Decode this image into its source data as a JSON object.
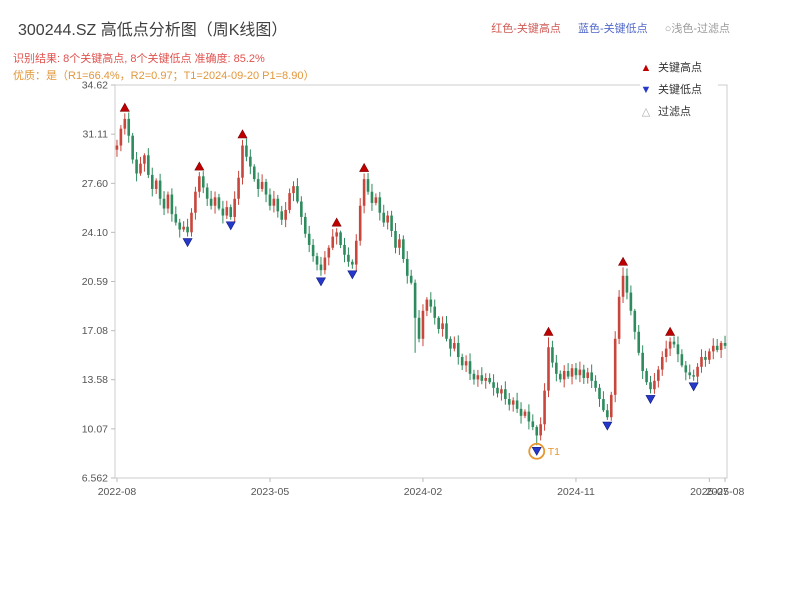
{
  "header": {
    "title": "300244.SZ 高低点分析图（周K线图）",
    "legend_top": [
      {
        "label": "红色-关键高点",
        "color": "#d05a56"
      },
      {
        "label": "蓝色-关键低点",
        "color": "#5068c8"
      },
      {
        "label": "○浅色-过滤点",
        "color": "#9a9a9a"
      }
    ],
    "subtitle1": "识别结果: 8个关键高点, 8个关键低点  准确度: 85.2%",
    "subtitle1_color": "#e0524e",
    "subtitle2": "优质：是（R1=66.4%，R2=0.97；T1=2024-09-20 P1=8.90）",
    "subtitle2_color": "#e2973b",
    "title_color": "#404040"
  },
  "legend_box": {
    "items": [
      {
        "label": "关键高点",
        "glyph": "▲",
        "color": "#c00000"
      },
      {
        "label": "关键低点",
        "glyph": "▼",
        "color": "#2638c8"
      },
      {
        "label": "过滤点",
        "glyph": "△",
        "color": "#aaaaaa"
      }
    ]
  },
  "chart_data": {
    "type": "candlestick",
    "symbol": "300244.SZ",
    "period": "weekly",
    "title": "300244.SZ 高低点分析图（周K线图）",
    "ylim": [
      6.562,
      34.62
    ],
    "y_ticks": [
      {
        "label": "34.62",
        "value": 34.62
      },
      {
        "label": "31.11",
        "value": 31.11
      },
      {
        "label": "27.60",
        "value": 27.6
      },
      {
        "label": "24.10",
        "value": 24.1
      },
      {
        "label": "20.59",
        "value": 20.59
      },
      {
        "label": "17.08",
        "value": 17.08
      },
      {
        "label": "13.58",
        "value": 13.58
      },
      {
        "label": "10.07",
        "value": 10.07
      },
      {
        "label": "6.562",
        "value": 6.562
      }
    ],
    "x_ticks": [
      {
        "label": "2022-08",
        "week": 0
      },
      {
        "label": "2023-05",
        "week": 39
      },
      {
        "label": "2024-02",
        "week": 78
      },
      {
        "label": "2024-11",
        "week": 117
      },
      {
        "label": "2025-07",
        "week": 151
      },
      {
        "label": "2025-08",
        "week": 155
      }
    ],
    "first_open": 30.0,
    "closes": [
      30.3,
      31.5,
      32.2,
      31.0,
      29.3,
      28.3,
      29.0,
      29.6,
      28.2,
      27.2,
      27.8,
      26.5,
      25.8,
      26.8,
      25.4,
      24.8,
      24.3,
      24.5,
      24.1,
      25.5,
      27.0,
      28.1,
      27.3,
      26.5,
      26.0,
      26.6,
      25.8,
      25.3,
      25.9,
      25.2,
      26.5,
      28.0,
      30.3,
      29.5,
      28.8,
      27.9,
      27.2,
      27.7,
      26.8,
      26.0,
      26.5,
      25.6,
      25.0,
      25.7,
      26.9,
      27.4,
      26.3,
      25.2,
      24.0,
      23.2,
      22.4,
      21.8,
      21.4,
      22.3,
      23.0,
      23.8,
      24.1,
      23.2,
      22.5,
      22.0,
      21.8,
      23.5,
      26.0,
      27.9,
      27.0,
      26.2,
      26.6,
      25.5,
      24.8,
      25.3,
      24.2,
      23.0,
      23.6,
      22.2,
      21.0,
      20.5,
      18.0,
      16.5,
      18.5,
      19.3,
      18.8,
      18.0,
      17.2,
      17.6,
      16.5,
      15.8,
      16.2,
      15.2,
      14.6,
      14.9,
      14.0,
      13.6,
      13.9,
      13.5,
      13.7,
      13.4,
      13.0,
      12.6,
      12.9,
      12.2,
      11.8,
      12.1,
      11.5,
      11.0,
      11.3,
      10.6,
      10.2,
      9.6,
      10.4,
      12.8,
      15.9,
      14.8,
      14.0,
      13.6,
      14.2,
      13.8,
      14.4,
      13.9,
      14.3,
      13.7,
      14.1,
      13.5,
      13.0,
      12.2,
      11.4,
      10.9,
      12.5,
      16.5,
      19.5,
      21.0,
      19.8,
      18.5,
      17.0,
      15.5,
      14.2,
      13.4,
      12.9,
      13.5,
      14.3,
      15.2,
      15.8,
      16.3,
      16.1,
      15.4,
      14.6,
      14.1,
      13.9,
      13.8,
      14.5,
      15.2,
      15.0,
      15.6,
      16.0,
      15.7,
      16.2,
      16.0
    ],
    "wick_high_overrides": {
      "2": 32.6,
      "21": 28.4,
      "32": 30.7,
      "56": 24.4,
      "63": 28.3,
      "110": 16.6,
      "129": 21.6,
      "141": 16.6
    },
    "wick_low_overrides": {
      "18": 23.8,
      "29": 25.0,
      "52": 21.0,
      "60": 21.5,
      "76": 15.5,
      "107": 8.9,
      "125": 10.7,
      "136": 12.6,
      "147": 13.5
    },
    "key_highs": [
      {
        "week": 2,
        "price": 32.6
      },
      {
        "week": 21,
        "price": 28.4
      },
      {
        "week": 32,
        "price": 30.7
      },
      {
        "week": 56,
        "price": 24.4
      },
      {
        "week": 63,
        "price": 28.3
      },
      {
        "week": 110,
        "price": 16.6
      },
      {
        "week": 129,
        "price": 21.6
      },
      {
        "week": 141,
        "price": 16.6
      }
    ],
    "key_lows": [
      {
        "week": 18,
        "price": 23.8
      },
      {
        "week": 29,
        "price": 25.0
      },
      {
        "week": 52,
        "price": 21.0
      },
      {
        "week": 60,
        "price": 21.5
      },
      {
        "week": 107,
        "price": 8.9
      },
      {
        "week": 125,
        "price": 10.7
      },
      {
        "week": 136,
        "price": 12.6
      },
      {
        "week": 147,
        "price": 13.5
      }
    ],
    "annotation": {
      "label": "T1",
      "week": 107,
      "price": 8.9,
      "color": "#e8962e"
    },
    "colors": {
      "up": "#c8463c",
      "down": "#2e8b5d",
      "high_marker": "#c00000",
      "low_marker": "#2638c8",
      "frame": "#cccccc",
      "tick_text": "#555555"
    }
  }
}
